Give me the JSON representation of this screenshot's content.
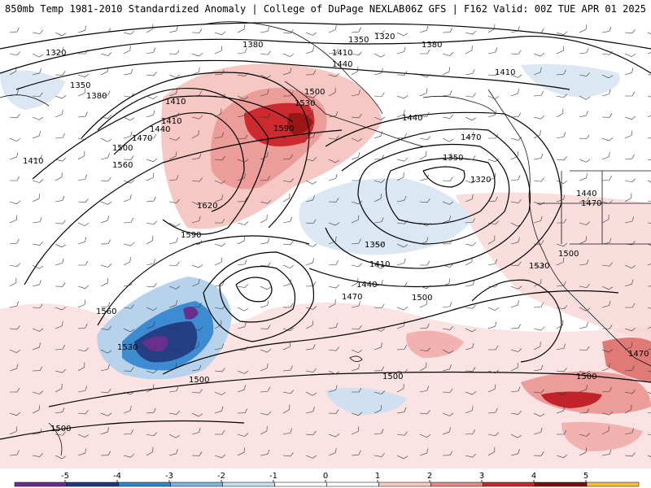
{
  "header": {
    "left_title": "850mb Temp 1981-2010 Standardized Anomaly | College of DuPage NEXLAB",
    "right_title": "06Z GFS | F162 Valid: 00Z TUE APR 01 2025"
  },
  "contour_labels": [
    "1320",
    "1380",
    "1350",
    "1320",
    "1380",
    "1350",
    "1380",
    "1410",
    "1440",
    "1410",
    "1500",
    "1530",
    "1590",
    "1440",
    "1410",
    "1470",
    "1500",
    "1410",
    "1560",
    "1620",
    "1590",
    "1350",
    "1320",
    "1440",
    "1470",
    "1410",
    "1440",
    "1350",
    "1410",
    "1440",
    "1470",
    "1500",
    "1530",
    "1500",
    "1560",
    "1530",
    "1500",
    "1500",
    "1500",
    "1470"
  ],
  "colorbar": {
    "ticks": [
      "-5",
      "-4",
      "-3",
      "-2",
      "-1",
      "0",
      "1",
      "2",
      "3",
      "4",
      "5"
    ],
    "colors": [
      "#6a2f8c",
      "#1f3a7d",
      "#2f86c9",
      "#7fb4de",
      "#c8dcef",
      "#ffffff",
      "#ffffff",
      "#f6c8c4",
      "#e98784",
      "#c8272d",
      "#7c0b0b",
      "#f2c230"
    ]
  }
}
